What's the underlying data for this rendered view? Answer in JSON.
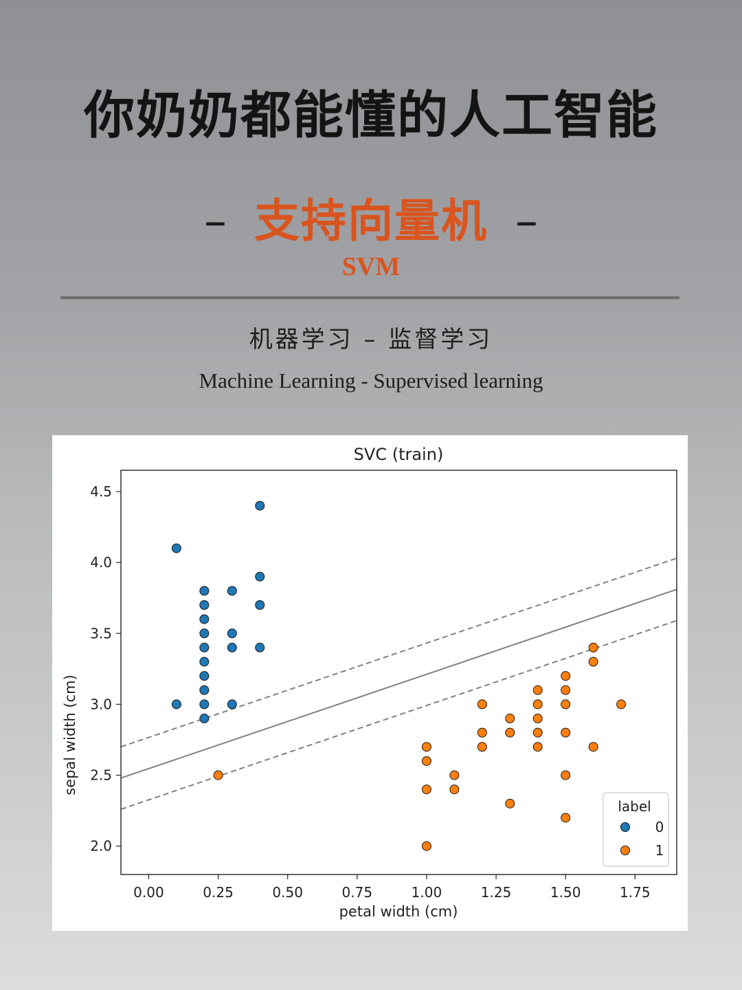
{
  "header": {
    "title": "你奶奶都能懂的人工智能",
    "subtitle_dash_left": "–",
    "subtitle": "支持向量机",
    "subtitle_dash_right": "–",
    "acronym": "SVM",
    "category_cn": "机器学习 – 监督学习",
    "category_en": "Machine Learning - Supervised learning"
  },
  "colors": {
    "accent": "#d9541e",
    "class0": "#1f77b4",
    "class1": "#ff7f0e",
    "boundary": "#808080"
  },
  "chart_data": {
    "type": "scatter",
    "title": "SVC (train)",
    "xlabel": "petal width (cm)",
    "ylabel": "sepal width (cm)",
    "xlim": [
      -0.1,
      1.9
    ],
    "ylim": [
      1.8,
      4.65
    ],
    "xticks": [
      "0.00",
      "0.25",
      "0.50",
      "0.75",
      "1.00",
      "1.25",
      "1.50",
      "1.75"
    ],
    "yticks": [
      "2.0",
      "2.5",
      "3.0",
      "3.5",
      "4.0",
      "4.5"
    ],
    "grid": false,
    "legend": {
      "title": "label",
      "position": "lower-right",
      "entries": [
        "0",
        "1"
      ]
    },
    "series": [
      {
        "name": "0",
        "points": [
          [
            0.1,
            4.1
          ],
          [
            0.1,
            3.0
          ],
          [
            0.2,
            3.8
          ],
          [
            0.2,
            3.7
          ],
          [
            0.2,
            3.6
          ],
          [
            0.2,
            3.5
          ],
          [
            0.2,
            3.4
          ],
          [
            0.2,
            3.3
          ],
          [
            0.2,
            3.2
          ],
          [
            0.2,
            3.1
          ],
          [
            0.2,
            3.0
          ],
          [
            0.2,
            2.9
          ],
          [
            0.3,
            3.8
          ],
          [
            0.3,
            3.5
          ],
          [
            0.3,
            3.4
          ],
          [
            0.3,
            3.0
          ],
          [
            0.4,
            4.4
          ],
          [
            0.4,
            3.9
          ],
          [
            0.4,
            3.7
          ],
          [
            0.4,
            3.4
          ]
        ]
      },
      {
        "name": "1",
        "points": [
          [
            0.25,
            2.5
          ],
          [
            1.0,
            2.7
          ],
          [
            1.0,
            2.6
          ],
          [
            1.0,
            2.4
          ],
          [
            1.0,
            2.0
          ],
          [
            1.1,
            2.5
          ],
          [
            1.1,
            2.4
          ],
          [
            1.2,
            3.0
          ],
          [
            1.2,
            2.8
          ],
          [
            1.2,
            2.7
          ],
          [
            1.3,
            2.9
          ],
          [
            1.3,
            2.8
          ],
          [
            1.3,
            2.3
          ],
          [
            1.4,
            3.1
          ],
          [
            1.4,
            3.0
          ],
          [
            1.4,
            2.9
          ],
          [
            1.4,
            2.8
          ],
          [
            1.4,
            2.7
          ],
          [
            1.5,
            3.2
          ],
          [
            1.5,
            3.1
          ],
          [
            1.5,
            3.0
          ],
          [
            1.5,
            2.8
          ],
          [
            1.5,
            2.5
          ],
          [
            1.5,
            2.2
          ],
          [
            1.6,
            3.4
          ],
          [
            1.6,
            3.3
          ],
          [
            1.6,
            2.7
          ],
          [
            1.7,
            3.0
          ]
        ]
      }
    ],
    "decision_boundary": {
      "start": [
        -0.1,
        2.48
      ],
      "end": [
        1.9,
        3.81
      ]
    },
    "margins": [
      {
        "start": [
          -0.1,
          2.7
        ],
        "end": [
          1.9,
          4.03
        ]
      },
      {
        "start": [
          -0.1,
          2.26
        ],
        "end": [
          1.9,
          3.59
        ]
      }
    ]
  }
}
